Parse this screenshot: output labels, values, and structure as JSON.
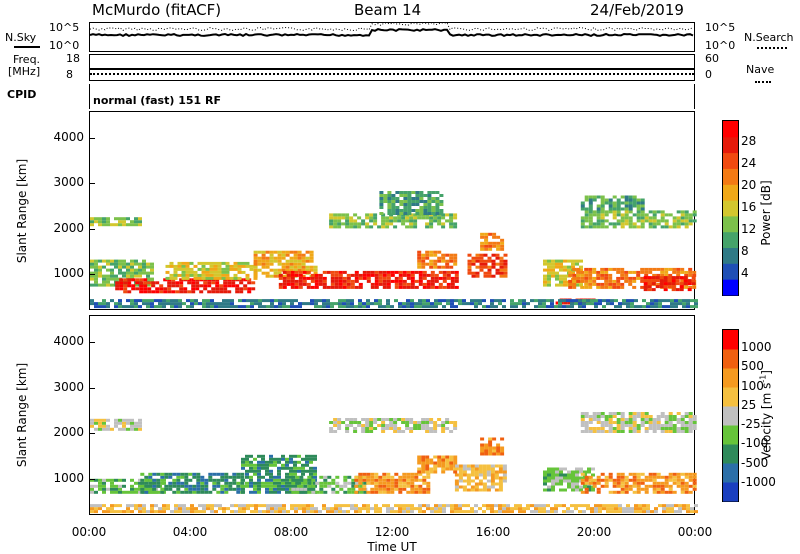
{
  "header": {
    "station": "McMurdo (fitACF)",
    "beam": "Beam 14",
    "date": "24/Feb/2019"
  },
  "top_panels": {
    "nsky_label": "N.Sky",
    "nsearch_label": "N.Search",
    "freq_label": "Freq.",
    "freq_unit": "[MHz]",
    "nave_label": "Nave",
    "cpid_label": "CPID",
    "cpid_text": "normal (fast) 151 RF",
    "noise_ticks": [
      "10^5",
      "10^0"
    ],
    "noise_ticks_right": [
      "10^5",
      "10^0"
    ],
    "freq_ticks": [
      "18",
      "8"
    ],
    "nave_ticks": [
      "60",
      "0"
    ]
  },
  "chart_data": [
    {
      "type": "heatmap",
      "name": "power",
      "ylabel": "Slant Range [km]",
      "xlabel": "",
      "x_ticks": [
        "00:00",
        "04:00",
        "08:00",
        "12:00",
        "16:00",
        "20:00",
        "00:00"
      ],
      "y_ticks": [
        "1000",
        "2000",
        "3000",
        "4000"
      ],
      "ylim": [
        200,
        4600
      ],
      "xlim_hours": [
        0,
        24
      ],
      "colorbar": {
        "label": "Power [dB]",
        "ticks": [
          "4",
          "8",
          "12",
          "16",
          "20",
          "24",
          "28"
        ],
        "colors": [
          "#0000ff",
          "#1f4fb5",
          "#2f7a86",
          "#45a36a",
          "#7cc14b",
          "#d3c72e",
          "#f0a818",
          "#f37a14",
          "#f04a10",
          "#e51a0a",
          "#ff0000"
        ]
      },
      "bands": [
        {
          "t0": 0.0,
          "t1": 2.0,
          "r0": 2050,
          "r1": 2250,
          "level": 4
        },
        {
          "t0": 0.0,
          "t1": 2.5,
          "r0": 700,
          "r1": 1300,
          "level": 4
        },
        {
          "t0": 1.0,
          "t1": 6.5,
          "r0": 550,
          "r1": 850,
          "level": 9
        },
        {
          "t0": 3.0,
          "t1": 6.5,
          "r0": 850,
          "r1": 1200,
          "level": 5
        },
        {
          "t0": 6.5,
          "t1": 9.0,
          "r0": 900,
          "r1": 1500,
          "level": 6
        },
        {
          "t0": 7.5,
          "t1": 14.5,
          "r0": 650,
          "r1": 1000,
          "level": 9
        },
        {
          "t0": 9.5,
          "t1": 14.5,
          "r0": 2000,
          "r1": 2300,
          "level": 4
        },
        {
          "t0": 11.5,
          "t1": 14.0,
          "r0": 2300,
          "r1": 2800,
          "level": 3
        },
        {
          "t0": 13.0,
          "t1": 14.5,
          "r0": 1100,
          "r1": 1500,
          "level": 7
        },
        {
          "t0": 15.0,
          "t1": 16.5,
          "r0": 900,
          "r1": 1400,
          "level": 8
        },
        {
          "t0": 15.5,
          "t1": 16.3,
          "r0": 1500,
          "r1": 1900,
          "level": 7
        },
        {
          "t0": 18.0,
          "t1": 19.5,
          "r0": 700,
          "r1": 1300,
          "level": 5
        },
        {
          "t0": 19.0,
          "t1": 24.0,
          "r0": 650,
          "r1": 1100,
          "level": 7
        },
        {
          "t0": 22.0,
          "t1": 24.0,
          "r0": 600,
          "r1": 900,
          "level": 9
        },
        {
          "t0": 19.5,
          "t1": 24.0,
          "r0": 2000,
          "r1": 2400,
          "level": 4
        },
        {
          "t0": 19.5,
          "t1": 22.0,
          "r0": 2400,
          "r1": 2700,
          "level": 3
        },
        {
          "t0": 18.5,
          "t1": 20.0,
          "r0": 300,
          "r1": 420,
          "level": 9
        },
        {
          "t0": 0.0,
          "t1": 24.0,
          "r0": 220,
          "r1": 380,
          "level": 2
        }
      ]
    },
    {
      "type": "heatmap",
      "name": "velocity",
      "ylabel": "Slant Range [km]",
      "xlabel": "Time UT",
      "x_ticks": [
        "00:00",
        "04:00",
        "08:00",
        "12:00",
        "16:00",
        "20:00",
        "00:00"
      ],
      "y_ticks": [
        "1000",
        "2000",
        "3000",
        "4000"
      ],
      "ylim": [
        200,
        4600
      ],
      "xlim_hours": [
        0,
        24
      ],
      "colorbar": {
        "label": "Velocity [m s^-1]",
        "ticks": [
          "1000",
          "500",
          "100",
          "25",
          "-25",
          "-100",
          "-500",
          "-1000"
        ],
        "colors": [
          "#1a3fbf",
          "#2b6fa8",
          "#2e8a5a",
          "#66c43a",
          "#c0c0c0",
          "#f5c040",
          "#f59a20",
          "#f06010",
          "#ff0000"
        ]
      },
      "bands": [
        {
          "t0": 0.0,
          "t1": 2.0,
          "r0": 2050,
          "r1": 2250,
          "level": 4
        },
        {
          "t0": 0.0,
          "t1": 3.0,
          "r0": 650,
          "r1": 950,
          "level": 3
        },
        {
          "t0": 2.0,
          "t1": 6.0,
          "r0": 650,
          "r1": 1100,
          "level": 2
        },
        {
          "t0": 6.0,
          "t1": 9.0,
          "r0": 650,
          "r1": 1500,
          "level": 2
        },
        {
          "t0": 8.0,
          "t1": 11.0,
          "r0": 650,
          "r1": 1000,
          "level": 3
        },
        {
          "t0": 9.5,
          "t1": 14.5,
          "r0": 2000,
          "r1": 2300,
          "level": 4
        },
        {
          "t0": 10.5,
          "t1": 13.5,
          "r0": 650,
          "r1": 1100,
          "level": 6
        },
        {
          "t0": 13.0,
          "t1": 14.5,
          "r0": 1100,
          "r1": 1500,
          "level": 6
        },
        {
          "t0": 14.5,
          "t1": 16.5,
          "r0": 700,
          "r1": 1300,
          "level": 5
        },
        {
          "t0": 15.5,
          "t1": 16.3,
          "r0": 1500,
          "r1": 1900,
          "level": 6
        },
        {
          "t0": 18.0,
          "t1": 20.0,
          "r0": 700,
          "r1": 1200,
          "level": 3
        },
        {
          "t0": 19.5,
          "t1": 24.0,
          "r0": 650,
          "r1": 1100,
          "level": 6
        },
        {
          "t0": 19.5,
          "t1": 24.0,
          "r0": 2000,
          "r1": 2400,
          "level": 4
        },
        {
          "t0": 0.0,
          "t1": 24.0,
          "r0": 220,
          "r1": 380,
          "level": 5
        }
      ]
    }
  ]
}
